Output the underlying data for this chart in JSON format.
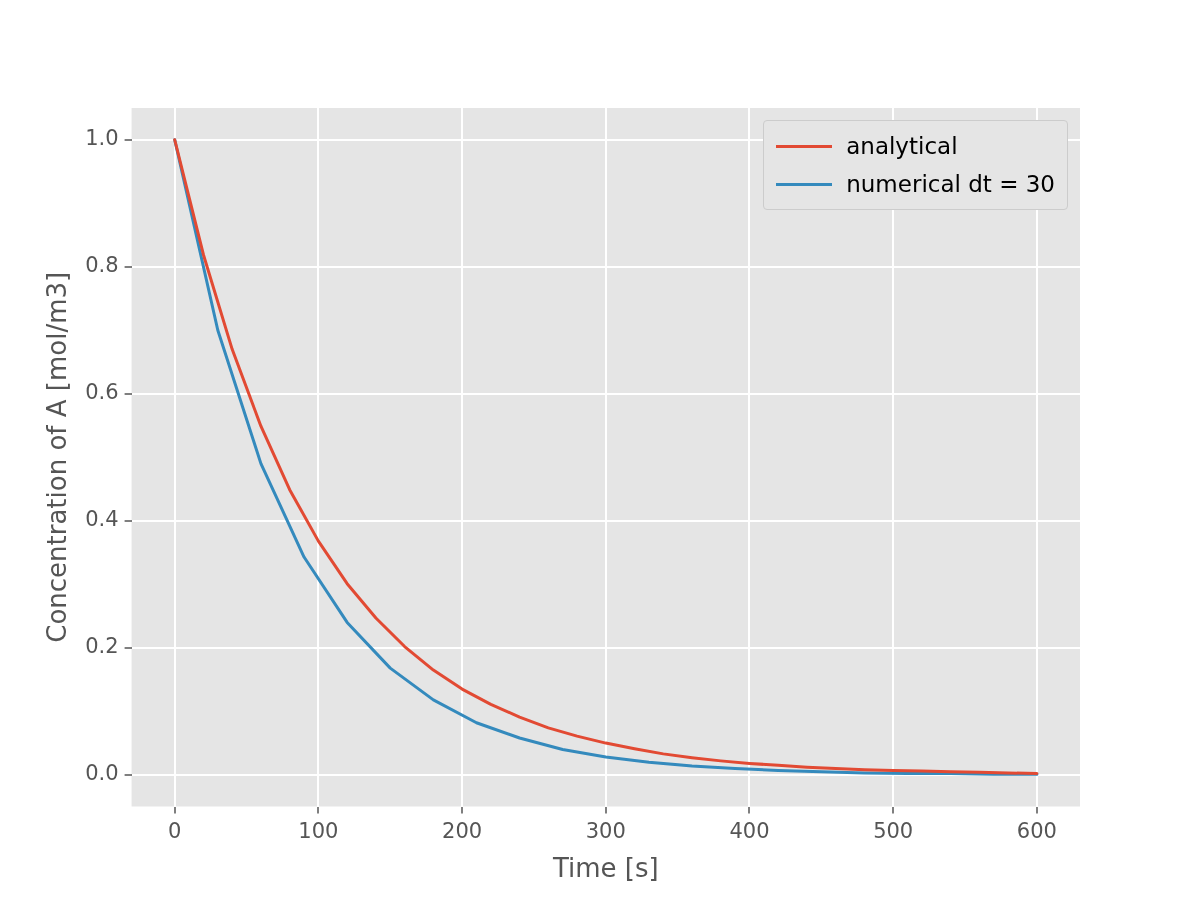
{
  "chart_data": {
    "type": "line",
    "xlabel": "Time [s]",
    "ylabel": "Concentration of A [mol/m3]",
    "xlim": [
      -30,
      630
    ],
    "ylim": [
      -0.05,
      1.05
    ],
    "xticks": [
      0,
      100,
      200,
      300,
      400,
      500,
      600
    ],
    "yticks": [
      {
        "value": 0,
        "label": "0.0"
      },
      0.2,
      0.4,
      0.6,
      0.8,
      {
        "value": 1,
        "label": "1.0"
      }
    ],
    "grid": true,
    "legend": "top right",
    "marker": "none",
    "line_style": "solid",
    "series": [
      {
        "name": "analytical",
        "color": "#e24a33",
        "x": [
          0,
          20,
          40,
          60,
          80,
          100,
          120,
          140,
          160,
          180,
          200,
          220,
          240,
          260,
          280,
          300,
          320,
          340,
          360,
          380,
          400,
          420,
          440,
          460,
          480,
          500,
          520,
          540,
          560,
          580,
          600
        ],
        "values": [
          1.0,
          0.819,
          0.67,
          0.549,
          0.449,
          0.368,
          0.301,
          0.247,
          0.202,
          0.165,
          0.135,
          0.111,
          0.091,
          0.074,
          0.061,
          0.05,
          0.041,
          0.033,
          0.027,
          0.022,
          0.018,
          0.015,
          0.012,
          0.01,
          0.008,
          0.007,
          0.006,
          0.005,
          0.004,
          0.003,
          0.002
        ]
      },
      {
        "name": "numerical dt = 30",
        "color": "#348abd",
        "x": [
          0,
          30,
          60,
          90,
          120,
          150,
          180,
          210,
          240,
          270,
          300,
          330,
          360,
          390,
          420,
          450,
          480,
          510,
          540,
          570,
          600
        ],
        "values": [
          1.0,
          0.7,
          0.49,
          0.343,
          0.24,
          0.168,
          0.118,
          0.082,
          0.058,
          0.04,
          0.028,
          0.02,
          0.014,
          0.01,
          0.007,
          0.005,
          0.003,
          0.002,
          0.002,
          0.001,
          0.001
        ]
      }
    ]
  }
}
